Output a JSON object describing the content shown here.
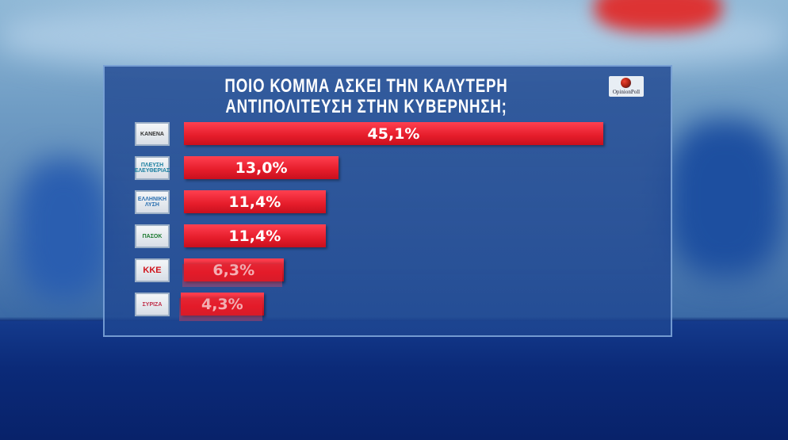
{
  "chart_data": {
    "type": "bar",
    "orientation": "horizontal",
    "title": "ΠΟΙΟ ΚΟΜΜΑ ΑΣΚΕΙ ΤΗΝ ΚΑΛΥΤΕΡΗ ΑΝΤΙΠΟΛΙΤΕΥΣΗ ΣΤΗΝ ΚΥΒΕΡΝΗΣΗ;",
    "categories": [
      "ΚΑΝΕΝΑ",
      "ΠΛΕΥΣΗ ΕΛΕΥΘΕΡΙΑΣ",
      "ΕΛΛΗΝΙΚΗ ΛΥΣΗ",
      "ΠΑΣΟΚ",
      "ΚΚΕ",
      "ΣΥΡΙΖΑ"
    ],
    "values": [
      45.1,
      13.0,
      11.4,
      11.4,
      6.3,
      4.3
    ],
    "labels": [
      "45,1%",
      "13,0%",
      "11,4%",
      "11,4%",
      "6,3%",
      "4,3%"
    ],
    "unit": "%",
    "bar_color": "#e51c2a",
    "grid": false
  },
  "brand": "OpinionPoll"
}
